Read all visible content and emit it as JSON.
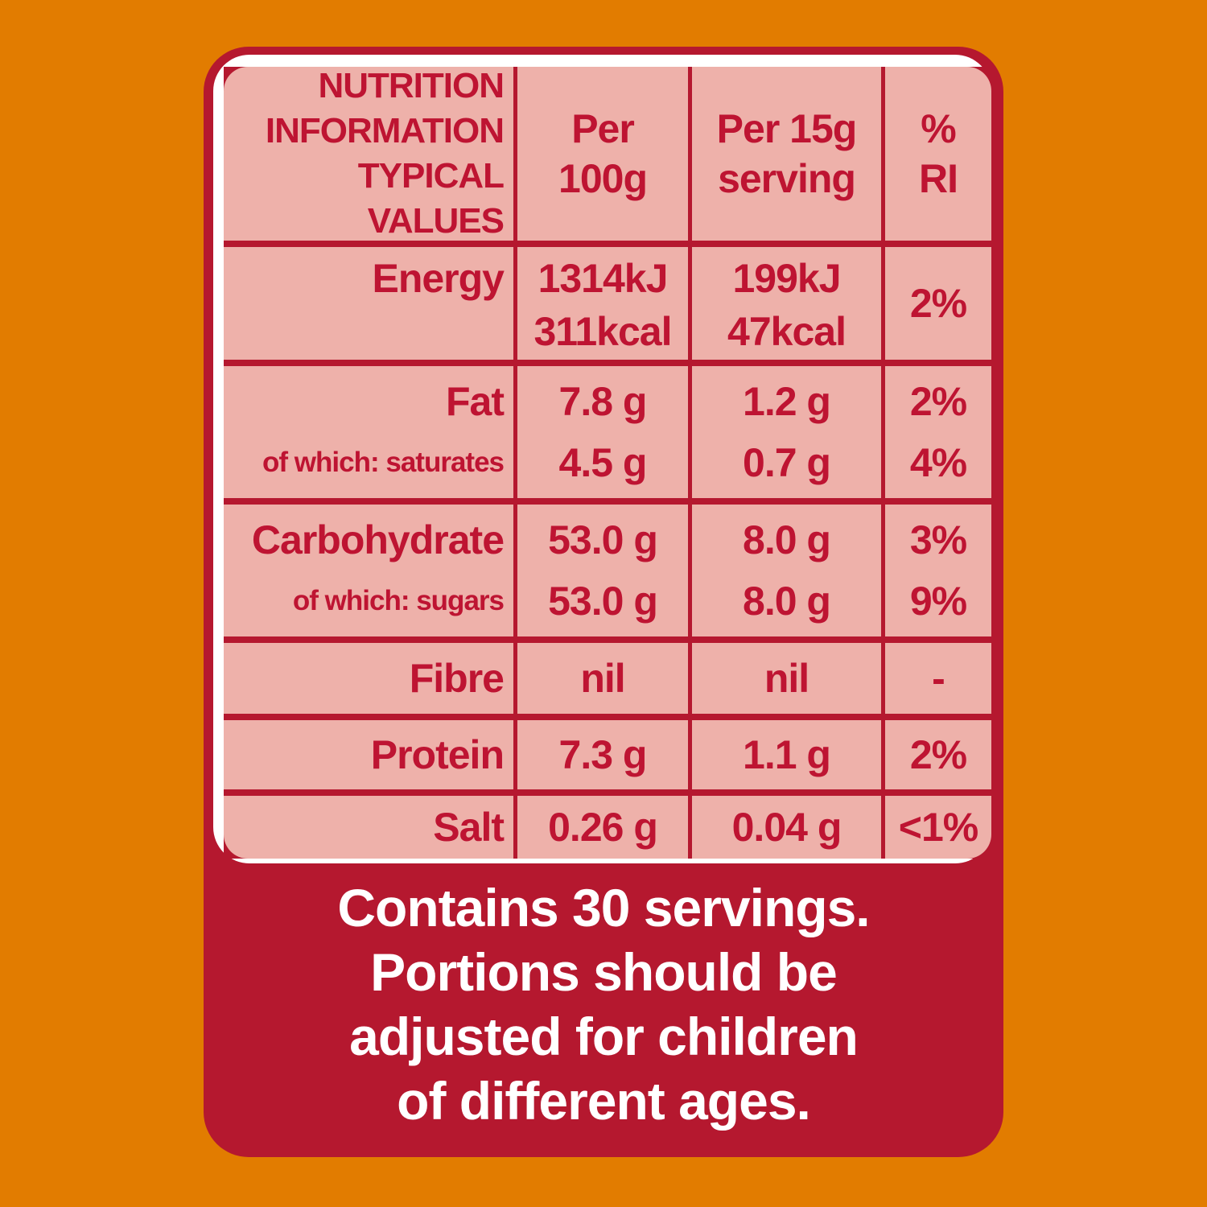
{
  "colors": {
    "background_orange": "#E27C00",
    "panel_red": "#B5182F",
    "table_pink": "#EEB1AA",
    "text_red": "#BE1432",
    "footer_text": "#FFFFFF"
  },
  "table": {
    "header": {
      "title_lines": [
        "NUTRITION",
        "INFORMATION",
        "TYPICAL VALUES"
      ],
      "per_100g_lines": [
        "Per",
        "100g"
      ],
      "per_serving_lines": [
        "Per 15g",
        "serving"
      ],
      "ri_lines": [
        "%",
        "RI"
      ]
    },
    "rows": [
      {
        "name": "energy",
        "label_lines": [
          "Energy"
        ],
        "per_100g_lines": [
          "1314kJ",
          "311kcal"
        ],
        "per_serving_lines": [
          "199kJ",
          "47kcal"
        ],
        "ri_lines": [
          "2%"
        ]
      },
      {
        "name": "fat",
        "label_lines": [
          "Fat",
          "of which: saturates"
        ],
        "per_100g_lines": [
          "7.8 g",
          "4.5 g"
        ],
        "per_serving_lines": [
          "1.2 g",
          "0.7 g"
        ],
        "ri_lines": [
          "2%",
          "4%"
        ]
      },
      {
        "name": "carbohydrate",
        "label_lines": [
          "Carbohydrate",
          "of which: sugars"
        ],
        "per_100g_lines": [
          "53.0 g",
          "53.0 g"
        ],
        "per_serving_lines": [
          "8.0 g",
          "8.0 g"
        ],
        "ri_lines": [
          "3%",
          "9%"
        ]
      },
      {
        "name": "fibre",
        "label_lines": [
          "Fibre"
        ],
        "per_100g_lines": [
          "nil"
        ],
        "per_serving_lines": [
          "nil"
        ],
        "ri_lines": [
          "-"
        ]
      },
      {
        "name": "protein",
        "label_lines": [
          "Protein"
        ],
        "per_100g_lines": [
          "7.3 g"
        ],
        "per_serving_lines": [
          "1.1 g"
        ],
        "ri_lines": [
          "2%"
        ]
      },
      {
        "name": "salt",
        "label_lines": [
          "Salt"
        ],
        "per_100g_lines": [
          "0.26 g"
        ],
        "per_serving_lines": [
          "0.04 g"
        ],
        "ri_lines": [
          "<1%"
        ]
      }
    ]
  },
  "footer": {
    "lines": [
      "Contains 30 servings.",
      "Portions should be",
      "adjusted for children",
      "of different ages."
    ]
  }
}
